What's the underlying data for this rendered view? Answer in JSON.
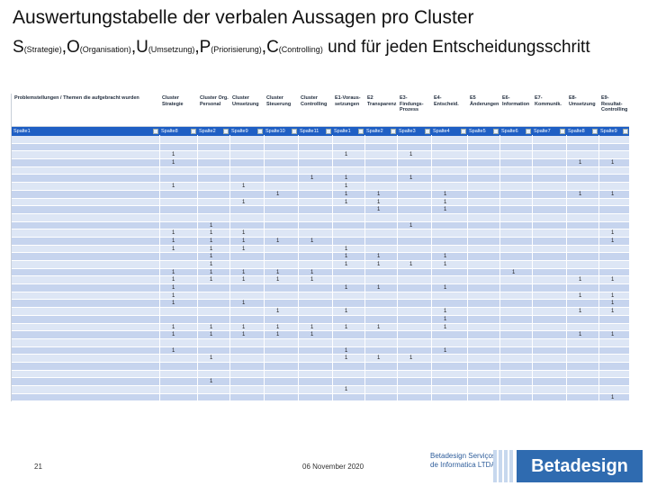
{
  "slide": {
    "title_line1": "Auswertungstabelle der verbalen Aussagen pro Cluster",
    "title_line2": [
      {
        "t": "S",
        "s": "(Strategie)"
      },
      {
        "t": ",O",
        "s": "(Organisation)"
      },
      {
        "t": ",U",
        "s": "(Umsetzung)"
      },
      {
        "t": ",P",
        "s": "(Priorisierung)"
      },
      {
        "t": ",C",
        "s": "(Controlling)"
      },
      {
        "t": " und für jeden Entscheidungsschritt",
        "s": ""
      }
    ],
    "page_number": "21",
    "date": "06 November 2020",
    "logo_subtitle_1": "Betadesign Serviços",
    "logo_subtitle_2": "de Informatica LTDA",
    "logo_name": "Betadesign"
  },
  "table": {
    "headers": [
      "Problemstellungen / Themen die aufgebracht wurden",
      "Cluster Strategie",
      "Cluster Org. Personal",
      "Cluster Umsetzung",
      "Cluster Steuerung",
      "Cluster Controlling",
      "E1-Voraus-setzungen",
      "E2 Transparenz",
      "E3-Findungs-Prozess",
      "E4-Entscheid.",
      "E5 Änderungen",
      "E6-Information",
      "E7-Kommunik.",
      "E8-Umsetzung",
      "E9-Resultat-Controlling"
    ],
    "filters": [
      "Spalte1",
      "Spalte8",
      "Spalte2",
      "Spalte9",
      "Spalte10",
      "Spalte11",
      "Spalte1",
      "Spalte2",
      "Spalte3",
      "Spalte4",
      "Spalte5",
      "Spalte6",
      "Spalte7",
      "Spalte8",
      "Spalte9"
    ],
    "rows": [
      [
        "",
        "",
        "",
        "",
        "",
        "",
        "",
        "",
        "",
        "",
        "",
        "",
        "",
        "",
        ""
      ],
      [
        "",
        "",
        "",
        "",
        "",
        "",
        "",
        "",
        "",
        "",
        "",
        "",
        "",
        "",
        ""
      ],
      [
        "",
        "1",
        "",
        "",
        "",
        "",
        "1",
        "",
        "1",
        "",
        "",
        "",
        "",
        "",
        ""
      ],
      [
        "",
        "1",
        "",
        "",
        "",
        "",
        "",
        "",
        "",
        "",
        "",
        "",
        "",
        "1",
        "1"
      ],
      [
        "",
        "",
        "",
        "",
        "",
        "",
        "",
        "",
        "",
        "",
        "",
        "",
        "",
        "",
        ""
      ],
      [
        "",
        "",
        "",
        "",
        "",
        "1",
        "1",
        "",
        "1",
        "",
        "",
        "",
        "",
        "",
        ""
      ],
      [
        "",
        "1",
        "",
        "1",
        "",
        "",
        "1",
        "",
        "",
        "",
        "",
        "",
        "",
        "",
        ""
      ],
      [
        "",
        "",
        "",
        "",
        "1",
        "",
        "1",
        "1",
        "",
        "1",
        "",
        "",
        "",
        "1",
        "1"
      ],
      [
        "",
        "",
        "",
        "1",
        "",
        "",
        "1",
        "1",
        "",
        "1",
        "",
        "",
        "",
        "",
        ""
      ],
      [
        "",
        "",
        "",
        "",
        "",
        "",
        "",
        "1",
        "",
        "1",
        "",
        "",
        "",
        "",
        ""
      ],
      [
        "",
        "",
        "",
        "",
        "",
        "",
        "",
        "",
        "",
        "",
        "",
        "",
        "",
        "",
        ""
      ],
      [
        "",
        "",
        "1",
        "",
        "",
        "",
        "",
        "",
        "1",
        "",
        "",
        "",
        "",
        "",
        ""
      ],
      [
        "",
        "1",
        "1",
        "1",
        "",
        "",
        "",
        "",
        "",
        "",
        "",
        "",
        "",
        "",
        "1"
      ],
      [
        "",
        "1",
        "1",
        "1",
        "1",
        "1",
        "",
        "",
        "",
        "",
        "",
        "",
        "",
        "",
        "1"
      ],
      [
        "",
        "1",
        "1",
        "1",
        "",
        "",
        "1",
        "",
        "",
        "",
        "",
        "",
        "",
        "",
        ""
      ],
      [
        "",
        "",
        "1",
        "",
        "",
        "",
        "1",
        "1",
        "",
        "1",
        "",
        "",
        "",
        "",
        ""
      ],
      [
        "",
        "",
        "1",
        "",
        "",
        "",
        "1",
        "1",
        "1",
        "1",
        "",
        "",
        "",
        "",
        ""
      ],
      [
        "",
        "1",
        "1",
        "1",
        "1",
        "1",
        "",
        "",
        "",
        "",
        "",
        "1",
        "",
        "",
        ""
      ],
      [
        "",
        "1",
        "1",
        "1",
        "1",
        "1",
        "",
        "",
        "",
        "",
        "",
        "",
        "",
        "1",
        "1"
      ],
      [
        "",
        "1",
        "",
        "",
        "",
        "",
        "1",
        "1",
        "",
        "1",
        "",
        "",
        "",
        "",
        ""
      ],
      [
        "",
        "1",
        "",
        "",
        "",
        "",
        "",
        "",
        "",
        "",
        "",
        "",
        "",
        "1",
        "1"
      ],
      [
        "",
        "1",
        "",
        "1",
        "",
        "",
        "",
        "",
        "",
        "",
        "",
        "",
        "",
        "",
        "1"
      ],
      [
        "",
        "",
        "",
        "",
        "1",
        "",
        "1",
        "",
        "",
        "1",
        "",
        "",
        "",
        "1",
        "1"
      ],
      [
        "",
        "",
        "",
        "",
        "",
        "",
        "",
        "",
        "",
        "1",
        "",
        "",
        "",
        "",
        ""
      ],
      [
        "",
        "1",
        "1",
        "1",
        "1",
        "1",
        "1",
        "1",
        "",
        "1",
        "",
        "",
        "",
        "",
        ""
      ],
      [
        "",
        "1",
        "1",
        "1",
        "1",
        "1",
        "",
        "",
        "",
        "",
        "",
        "",
        "",
        "1",
        "1"
      ],
      [
        "",
        "",
        "",
        "",
        "",
        "",
        "",
        "",
        "",
        "",
        "",
        "",
        "",
        "",
        ""
      ],
      [
        "",
        "1",
        "",
        "",
        "",
        "",
        "1",
        "",
        "",
        "1",
        "",
        "",
        "",
        "",
        ""
      ],
      [
        "",
        "",
        "1",
        "",
        "",
        "",
        "1",
        "1",
        "1",
        "",
        "",
        "",
        "",
        "",
        ""
      ],
      [
        "",
        "",
        "",
        "",
        "",
        "",
        "",
        "",
        "",
        "",
        "",
        "",
        "",
        "",
        ""
      ],
      [
        "",
        "",
        "",
        "",
        "",
        "",
        "",
        "",
        "",
        "",
        "",
        "",
        "",
        "",
        ""
      ],
      [
        "",
        "",
        "1",
        "",
        "",
        "",
        "",
        "",
        "",
        "",
        "",
        "",
        "",
        "",
        ""
      ],
      [
        "",
        "",
        "",
        "",
        "",
        "",
        "1",
        "",
        "",
        "",
        "",
        "",
        "",
        "",
        ""
      ],
      [
        "",
        "",
        "",
        "",
        "",
        "",
        "",
        "",
        "",
        "",
        "",
        "",
        "",
        "",
        "1"
      ]
    ]
  }
}
